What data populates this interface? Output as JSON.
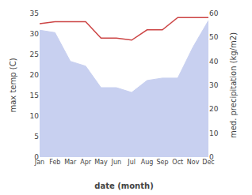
{
  "chart_data": {
    "type": "line",
    "categories": [
      "Jan",
      "Feb",
      "Mar",
      "Apr",
      "May",
      "Jun",
      "Jul",
      "Aug",
      "Sep",
      "Oct",
      "Nov",
      "Dec"
    ],
    "xlabel": "date (month)",
    "ylabel": "max temp (C)",
    "y2label": "med. precipitation (kg/m2)",
    "ylim": [
      0,
      35
    ],
    "yticks": [
      0,
      5,
      10,
      15,
      20,
      25,
      30,
      35
    ],
    "y2lim": [
      0,
      60
    ],
    "y2ticks": [
      0,
      10,
      20,
      30,
      40,
      50,
      60
    ],
    "grid": false,
    "series": [
      {
        "type": "area",
        "axis": "y2",
        "color": "#c8d0f0",
        "values": [
          53,
          52,
          40,
          38,
          29,
          29,
          27,
          32,
          33,
          33,
          46,
          57
        ]
      },
      {
        "type": "line",
        "color": "#cc4444",
        "values": [
          32.5,
          33.0,
          33.0,
          33.0,
          29.0,
          29.0,
          28.5,
          31.0,
          31.0,
          34.0,
          34.0,
          34.0
        ]
      }
    ]
  }
}
